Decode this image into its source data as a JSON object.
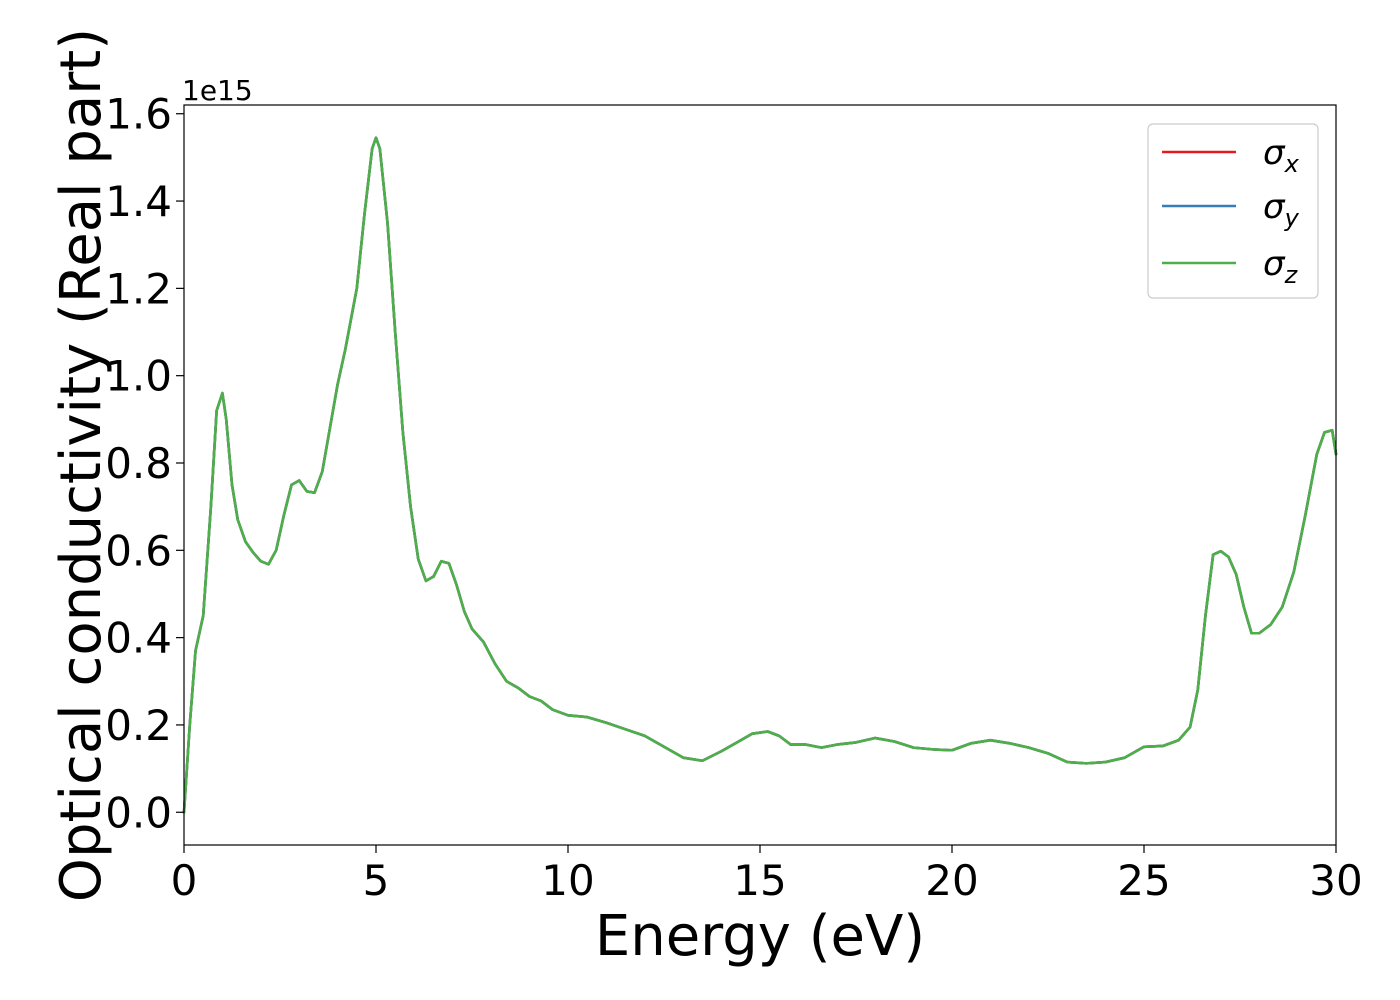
{
  "chart_data": {
    "type": "line",
    "title": "",
    "xlabel": "Energy (eV)",
    "ylabel": "Optical conductivity (Real part)",
    "y_offset_text": "1e15",
    "y_scale_factor": 1000000000000000.0,
    "xlim": [
      0,
      30
    ],
    "ylim": [
      -0.075,
      1.62
    ],
    "xticks": [
      0,
      5,
      10,
      15,
      20,
      25,
      30
    ],
    "xtick_labels": [
      "0",
      "5",
      "10",
      "15",
      "20",
      "25",
      "30"
    ],
    "yticks": [
      0.0,
      0.2,
      0.4,
      0.6,
      0.8,
      1.0,
      1.2,
      1.4,
      1.6
    ],
    "ytick_labels": [
      "0.0",
      "0.2",
      "0.4",
      "0.6",
      "0.8",
      "1.0",
      "1.2",
      "1.4",
      "1.6"
    ],
    "grid": false,
    "legend": {
      "placement": "top-right",
      "entries": [
        {
          "symbol": "σ",
          "subscript": "x",
          "color": "#e41a1c"
        },
        {
          "symbol": "σ",
          "subscript": "y",
          "color": "#377eb8"
        },
        {
          "symbol": "σ",
          "subscript": "z",
          "color": "#4daf4a"
        }
      ]
    },
    "x": [
      0,
      0.15,
      0.3,
      0.5,
      0.7,
      0.85,
      1.0,
      1.1,
      1.25,
      1.4,
      1.6,
      1.8,
      2.0,
      2.2,
      2.4,
      2.6,
      2.8,
      3.0,
      3.2,
      3.4,
      3.6,
      3.8,
      4.0,
      4.2,
      4.5,
      4.7,
      4.9,
      5.0,
      5.1,
      5.3,
      5.5,
      5.7,
      5.9,
      6.1,
      6.3,
      6.5,
      6.7,
      6.9,
      7.1,
      7.3,
      7.5,
      7.8,
      8.1,
      8.4,
      8.7,
      9.0,
      9.3,
      9.6,
      10.0,
      10.5,
      11.0,
      11.5,
      12.0,
      12.5,
      13.0,
      13.5,
      14.0,
      14.5,
      14.8,
      15.2,
      15.5,
      15.8,
      16.2,
      16.6,
      17.0,
      17.5,
      18.0,
      18.5,
      19.0,
      19.5,
      20.0,
      20.5,
      21.0,
      21.5,
      22.0,
      22.5,
      23.0,
      23.5,
      24.0,
      24.5,
      25.0,
      25.5,
      25.9,
      26.2,
      26.4,
      26.6,
      26.8,
      27.0,
      27.2,
      27.4,
      27.6,
      27.8,
      28.0,
      28.3,
      28.6,
      28.9,
      29.2,
      29.5,
      29.7,
      29.9,
      30.0
    ],
    "series": [
      {
        "name": "σx",
        "color": "#e41a1c",
        "values": [
          0.0,
          0.2,
          0.37,
          0.45,
          0.7,
          0.92,
          0.96,
          0.9,
          0.75,
          0.67,
          0.62,
          0.595,
          0.575,
          0.568,
          0.6,
          0.68,
          0.75,
          0.76,
          0.735,
          0.732,
          0.78,
          0.88,
          0.98,
          1.06,
          1.2,
          1.37,
          1.52,
          1.545,
          1.52,
          1.35,
          1.1,
          0.87,
          0.7,
          0.58,
          0.53,
          0.54,
          0.575,
          0.57,
          0.52,
          0.46,
          0.42,
          0.39,
          0.34,
          0.3,
          0.285,
          0.265,
          0.255,
          0.235,
          0.222,
          0.218,
          0.205,
          0.19,
          0.175,
          0.15,
          0.125,
          0.118,
          0.14,
          0.165,
          0.18,
          0.185,
          0.175,
          0.155,
          0.155,
          0.148,
          0.155,
          0.16,
          0.17,
          0.162,
          0.148,
          0.144,
          0.142,
          0.158,
          0.165,
          0.158,
          0.148,
          0.135,
          0.115,
          0.112,
          0.115,
          0.125,
          0.15,
          0.152,
          0.165,
          0.195,
          0.28,
          0.45,
          0.59,
          0.598,
          0.585,
          0.545,
          0.47,
          0.41,
          0.41,
          0.43,
          0.47,
          0.55,
          0.68,
          0.82,
          0.87,
          0.875,
          0.82
        ]
      },
      {
        "name": "σy",
        "color": "#377eb8",
        "values": [
          0.0,
          0.2,
          0.37,
          0.45,
          0.7,
          0.92,
          0.96,
          0.9,
          0.75,
          0.67,
          0.62,
          0.595,
          0.575,
          0.568,
          0.6,
          0.68,
          0.75,
          0.76,
          0.735,
          0.732,
          0.78,
          0.88,
          0.98,
          1.06,
          1.2,
          1.37,
          1.52,
          1.545,
          1.52,
          1.35,
          1.1,
          0.87,
          0.7,
          0.58,
          0.53,
          0.54,
          0.575,
          0.57,
          0.52,
          0.46,
          0.42,
          0.39,
          0.34,
          0.3,
          0.285,
          0.265,
          0.255,
          0.235,
          0.222,
          0.218,
          0.205,
          0.19,
          0.175,
          0.15,
          0.125,
          0.118,
          0.14,
          0.165,
          0.18,
          0.185,
          0.175,
          0.155,
          0.155,
          0.148,
          0.155,
          0.16,
          0.17,
          0.162,
          0.148,
          0.144,
          0.142,
          0.158,
          0.165,
          0.158,
          0.148,
          0.135,
          0.115,
          0.112,
          0.115,
          0.125,
          0.15,
          0.152,
          0.165,
          0.195,
          0.28,
          0.45,
          0.59,
          0.598,
          0.585,
          0.545,
          0.47,
          0.41,
          0.41,
          0.43,
          0.47,
          0.55,
          0.68,
          0.82,
          0.87,
          0.875,
          0.82
        ]
      },
      {
        "name": "σz",
        "color": "#4daf4a",
        "values": [
          0.0,
          0.2,
          0.37,
          0.45,
          0.7,
          0.92,
          0.96,
          0.9,
          0.75,
          0.67,
          0.62,
          0.595,
          0.575,
          0.568,
          0.6,
          0.68,
          0.75,
          0.76,
          0.735,
          0.732,
          0.78,
          0.88,
          0.98,
          1.06,
          1.2,
          1.37,
          1.52,
          1.545,
          1.52,
          1.35,
          1.1,
          0.87,
          0.7,
          0.58,
          0.53,
          0.54,
          0.575,
          0.57,
          0.52,
          0.46,
          0.42,
          0.39,
          0.34,
          0.3,
          0.285,
          0.265,
          0.255,
          0.235,
          0.222,
          0.218,
          0.205,
          0.19,
          0.175,
          0.15,
          0.125,
          0.118,
          0.14,
          0.165,
          0.18,
          0.185,
          0.175,
          0.155,
          0.155,
          0.148,
          0.155,
          0.16,
          0.17,
          0.162,
          0.148,
          0.144,
          0.142,
          0.158,
          0.165,
          0.158,
          0.148,
          0.135,
          0.115,
          0.112,
          0.115,
          0.125,
          0.15,
          0.152,
          0.165,
          0.195,
          0.28,
          0.45,
          0.59,
          0.598,
          0.585,
          0.545,
          0.47,
          0.41,
          0.41,
          0.43,
          0.47,
          0.55,
          0.68,
          0.82,
          0.87,
          0.875,
          0.82
        ]
      }
    ]
  }
}
